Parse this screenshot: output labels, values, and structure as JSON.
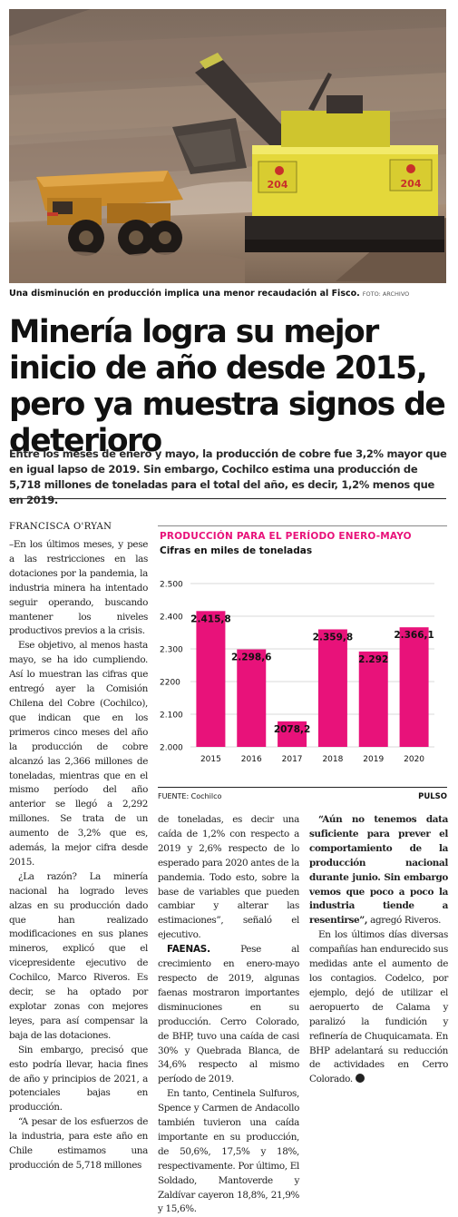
{
  "photo": {
    "caption": "Una disminución en producción implica una menor recaudación al Fisco.",
    "credit": "FOTO: ARCHIVO",
    "truck_number": "204",
    "shovel_number": "204"
  },
  "headline": "Minería logra su mejor inicio de año desde 2015, pero ya muestra signos de deterioro",
  "lead": "Entre los meses de enero y mayo, la producción de cobre fue 3,2% mayor que en igual lapso de 2019. Sin embargo, Cochilco estima una producción de 5,718 millones de toneladas para el total del año, es decir, 1,2% menos que en 2019.",
  "byline": "FRANCISCA O'RYAN",
  "body": {
    "p1": "–En los últimos meses, y pese a las restricciones en las dotaciones por la pandemia, la industria minera ha intentado seguir operando, buscando mantener los niveles productivos previos a la crisis.",
    "p2": "Ese objetivo, al menos hasta mayo, se ha ido cumpliendo. Así lo muestran las cifras que entregó ayer la Comisión Chilena del Cobre (Cochilco), que indican que en los primeros cinco meses del año la producción de cobre alcanzó las 2,366 millones de toneladas, mientras que en el mismo período del año anterior se llegó a 2,292 millones. Se trata de un aumento de 3,2% que es, además, la mejor cifra desde 2015.",
    "p3": "¿La razón? La minería nacional ha logrado leves alzas en su producción dado que han realizado modificaciones en sus planes mineros, explicó que el vicepresidente ejecutivo de Cochilco, Marco Riveros. Es decir, se ha optado por explotar zonas con mejores leyes, para así compensar la baja de las dotaciones.",
    "p4": "Sin embargo, precisó que esto podría llevar, hacia fines de año y principios de 2021, a potenciales bajas en producción.",
    "p5": "“A pesar de los esfuerzos de la industria, para este año en Chile estimamos una producción de 5,718 millones de toneladas, es decir una caída de 1,2% con respecto a 2019 y 2,6% respecto de lo esperado para 2020 antes de la pandemia. Todo esto, sobre la base de variables que pueden cambiar y alterar las estimaciones”, señaló el ejecutivo.",
    "faenas_label": "FAENAS.",
    "p6": "Pese al crecimiento en enero-mayo respecto de 2019, algunas faenas mostraron importantes disminuciones en su producción. Cerro Colorado, de BHP, tuvo una caída de casi 30% y Quebrada Blanca, de 34,6% respecto al mismo período de 2019.",
    "p7": "En tanto, Centinela Sulfuros, Spence y Carmen de Andacollo también tuvieron una caída importante en su producción, de 50,6%, 17,5% y 18%, respectivamente. Por último, El Soldado, Mantoverde y Zaldívar cayeron 18,8%, 21,9% y 15,6%.",
    "p8_bold": "“Aún no tenemos data suficiente para prever el comportamiento de la producción nacional durante junio. Sin embargo vemos que poco a poco la industria tiende a resentirse”,",
    "p8_rest": "agregó Riveros.",
    "p9": "En los últimos días diversas compañías han endurecido sus medidas ante el aumento de los contagios. Codelco, por ejemplo, dejó de utilizar el aeropuerto de Calama y paralizó la fundición y refinería de Chuquicamata. En BHP adelantará su reducción de actividades en Cerro Colorado."
  },
  "colors": {
    "accent": "#e8127a",
    "bar": "#e8127a"
  },
  "chart_data": {
    "type": "bar",
    "title": "PRODUCCIÓN PARA EL PERÍODO ENERO-MAYO",
    "subtitle": "Cifras en miles de toneladas",
    "categories": [
      "2015",
      "2016",
      "2017",
      "2018",
      "2019",
      "2020"
    ],
    "values": [
      2415.8,
      2298.6,
      2078.2,
      2359.8,
      2292,
      2366.1
    ],
    "value_labels": [
      "2.415,8",
      "2.298,6",
      "2078,2",
      "2.359,8",
      "2.292",
      "2.366,1"
    ],
    "y_ticks": [
      2000,
      2100,
      2200,
      2300,
      2400,
      2500
    ],
    "y_tick_labels": [
      "2.000",
      "2.100",
      "2200",
      "2.300",
      "2.400",
      "2.500"
    ],
    "ylim": [
      2000,
      2500
    ],
    "grid": true,
    "source": "FUENTE: Cochilco",
    "brand": "PULSO"
  }
}
